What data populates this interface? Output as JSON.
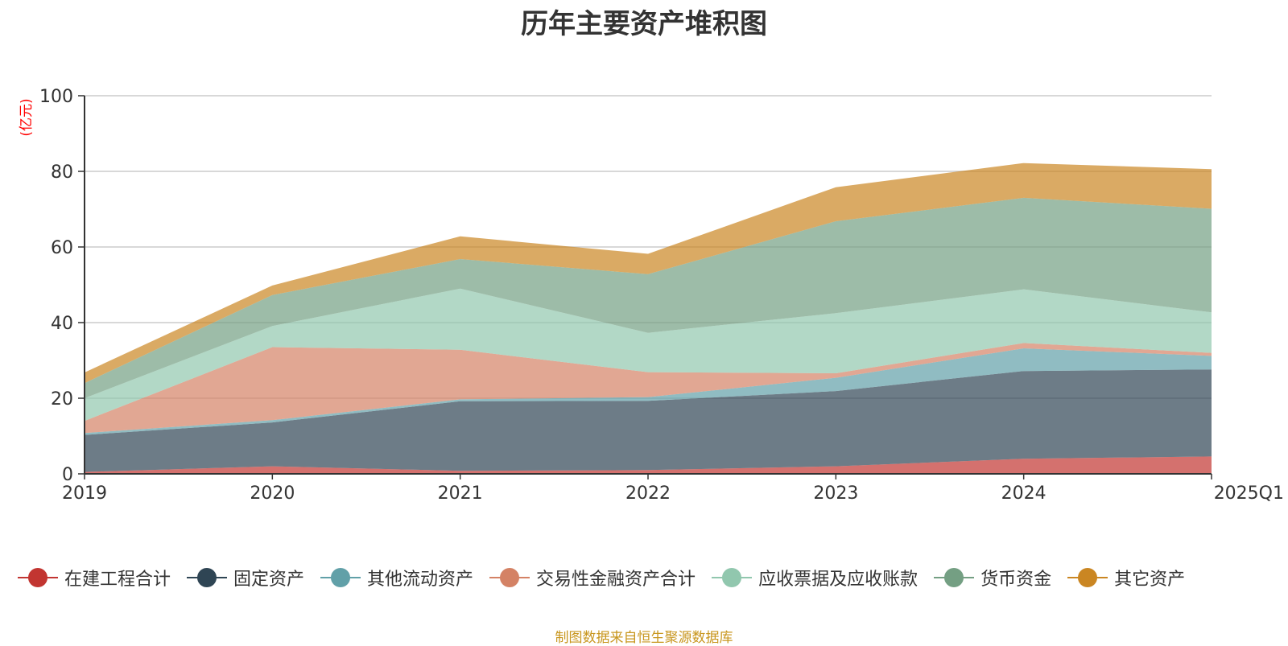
{
  "chart_data": {
    "type": "area",
    "stacked": true,
    "title": "历年主要资产堆积图",
    "ylabel": "(亿元)",
    "xlabel": "",
    "ylim": [
      0,
      100
    ],
    "yticks": [
      0,
      20,
      40,
      60,
      80,
      100
    ],
    "grid": true,
    "legend_position": "bottom",
    "categories": [
      "2019",
      "2020",
      "2021",
      "2022",
      "2023",
      "2024",
      "2025Q1"
    ],
    "series": [
      {
        "name": "在建工程合计",
        "color": "#c23531",
        "values": [
          0.5,
          2.0,
          0.8,
          1.0,
          2.0,
          4.0,
          4.6
        ]
      },
      {
        "name": "固定资产",
        "color": "#2f4554",
        "values": [
          9.8,
          11.6,
          18.4,
          18.3,
          19.9,
          23.2,
          23.0
        ]
      },
      {
        "name": "其他流动资产",
        "color": "#61a0a8",
        "values": [
          0.5,
          0.6,
          0.5,
          1.0,
          3.5,
          6.0,
          3.6
        ]
      },
      {
        "name": "交易性金融资产合计",
        "color": "#d48265",
        "values": [
          3.2,
          19.3,
          13.1,
          6.6,
          1.2,
          1.4,
          0.8
        ]
      },
      {
        "name": "应收票据及应收账款",
        "color": "#91c7ae",
        "values": [
          6.0,
          5.6,
          16.2,
          10.4,
          15.9,
          14.2,
          10.7
        ]
      },
      {
        "name": "货币资金",
        "color": "#749f83",
        "values": [
          4.0,
          8.2,
          7.8,
          15.5,
          24.3,
          24.2,
          27.4
        ]
      },
      {
        "name": "其它资产",
        "color": "#ca8622",
        "values": [
          2.8,
          2.5,
          6.0,
          5.4,
          9.0,
          9.2,
          10.5
        ]
      }
    ]
  },
  "footer": {
    "text": "制图数据来自恒生聚源数据库",
    "color": "#c8961e"
  },
  "ylabel_color": "#ff0000"
}
